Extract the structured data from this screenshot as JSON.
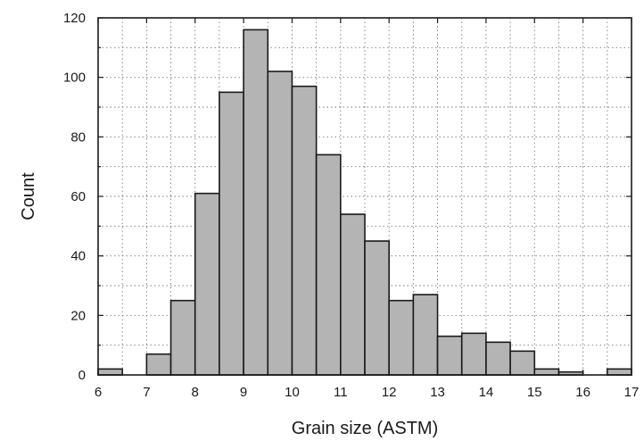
{
  "chart_data": {
    "type": "bar",
    "title": "",
    "xlabel": "Grain size (ASTM)",
    "ylabel": "Count",
    "bin_width": 0.5,
    "bin_starts": [
      6.0,
      6.5,
      7.0,
      7.5,
      8.0,
      8.5,
      9.0,
      9.5,
      10.0,
      10.5,
      11.0,
      11.5,
      12.0,
      12.5,
      13.0,
      13.5,
      14.0,
      14.5,
      15.0,
      15.5,
      16.0,
      16.5
    ],
    "values": [
      2,
      0,
      7,
      25,
      61,
      95,
      116,
      102,
      97,
      74,
      54,
      45,
      25,
      27,
      13,
      14,
      11,
      8,
      2,
      1,
      0,
      2
    ],
    "xlim": [
      6,
      17
    ],
    "ylim": [
      0,
      120
    ],
    "x_ticks": [
      "6",
      "7",
      "8",
      "9",
      "10",
      "11",
      "12",
      "13",
      "14",
      "15",
      "16",
      "17"
    ],
    "y_ticks": [
      "0",
      "20",
      "40",
      "60",
      "80",
      "100",
      "120"
    ],
    "grid": true,
    "colors": {
      "bar_fill": "#b4b4b4",
      "bar_stroke": "#1a1a1a"
    }
  }
}
